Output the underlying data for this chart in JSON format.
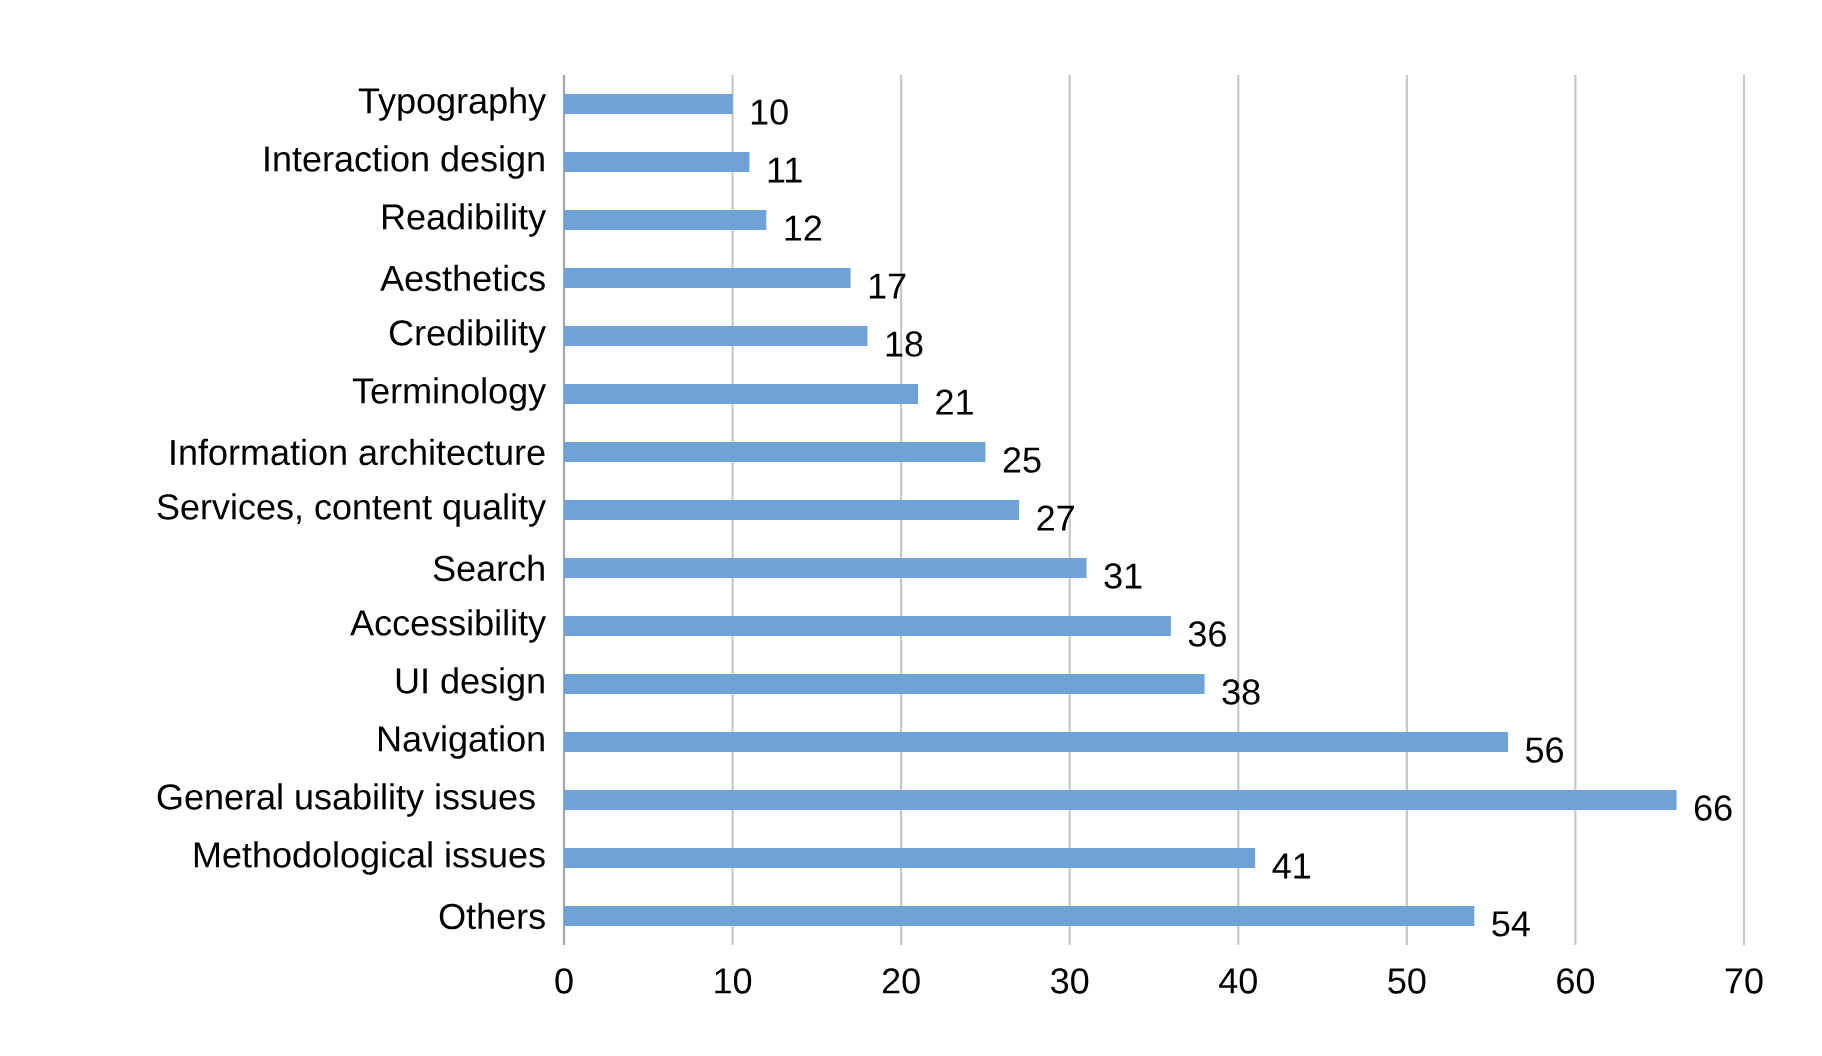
{
  "chart_data": {
    "type": "bar",
    "orientation": "horizontal",
    "categories": [
      "Typography",
      "Interaction design",
      "Readibility",
      "Aesthetics",
      "Credibility",
      "Terminology",
      "Information architecture",
      "Services, content quality",
      "Search",
      "Accessibility",
      "UI design",
      "Navigation",
      "General usability issues ",
      "Methodological issues",
      "Others"
    ],
    "values": [
      10,
      11,
      12,
      17,
      18,
      21,
      25,
      27,
      31,
      36,
      38,
      56,
      66,
      41,
      54
    ],
    "color": "#6fa3d8",
    "xlim": [
      0,
      70
    ],
    "xticks": [
      0,
      10,
      20,
      30,
      40,
      50,
      60,
      70
    ],
    "grid": "x",
    "data_labels": true
  }
}
